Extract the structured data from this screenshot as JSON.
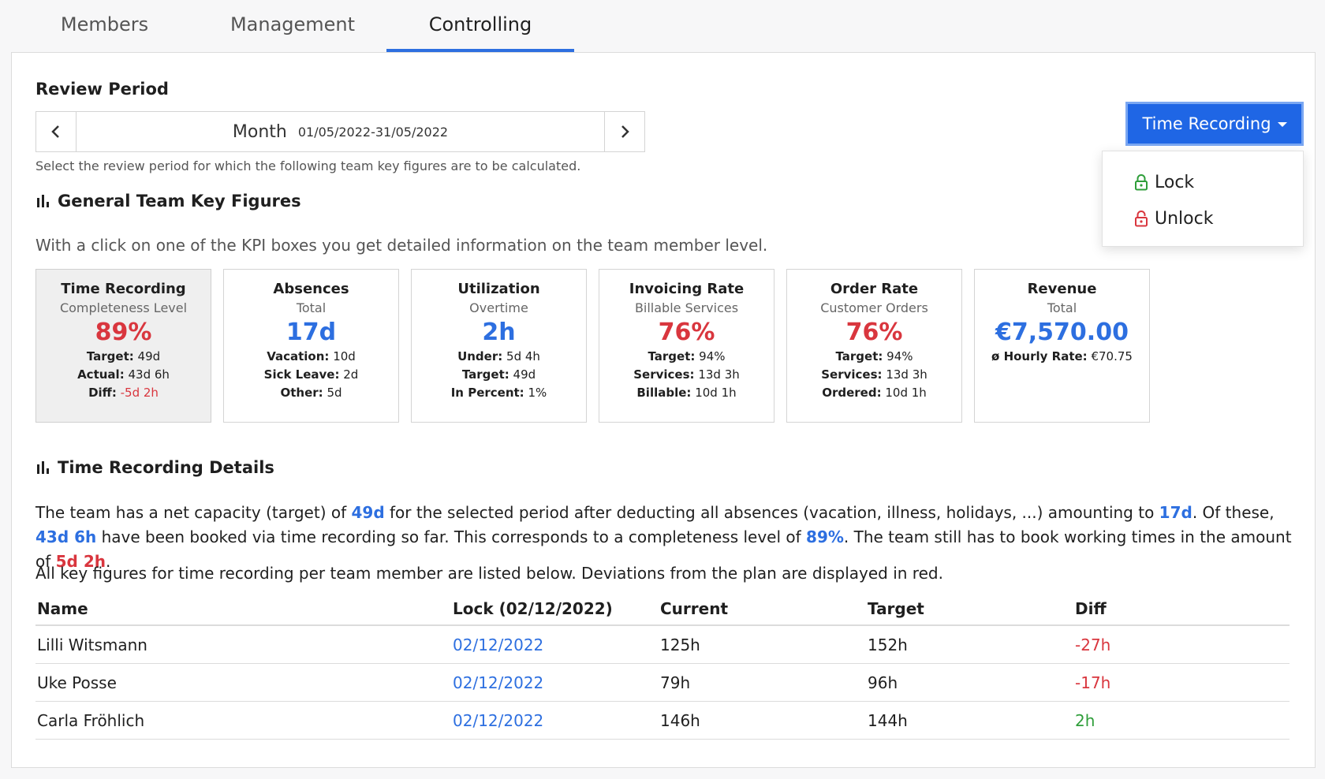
{
  "tabs": [
    {
      "label": "Members",
      "active": false
    },
    {
      "label": "Management",
      "active": false
    },
    {
      "label": "Controlling",
      "active": true
    }
  ],
  "review_period": {
    "title": "Review Period",
    "unit": "Month",
    "range": "01/05/2022-31/05/2022",
    "hint": "Select the review period for which the following team key figures are to be calculated."
  },
  "time_recording_menu": {
    "button_label": "Time Recording",
    "items": [
      {
        "label": "Lock",
        "icon": "lock-icon",
        "color": "#2f9e3a"
      },
      {
        "label": "Unlock",
        "icon": "unlock-icon",
        "color": "#d9363e"
      }
    ]
  },
  "general": {
    "title": "General Team Key Figures",
    "subtitle": "With a click on one of the KPI boxes you get detailed information on the team member level."
  },
  "kpis": [
    {
      "title": "Time Recording",
      "sub": "Completeness Level",
      "value": "89%",
      "color": "red",
      "lines": [
        {
          "k": "Target:",
          "v": "49d"
        },
        {
          "k": "Actual:",
          "v": "43d 6h"
        },
        {
          "k": "Diff:",
          "v": "-5d 2h",
          "red": true
        }
      ]
    },
    {
      "title": "Absences",
      "sub": "Total",
      "value": "17d",
      "color": "blue",
      "lines": [
        {
          "k": "Vacation:",
          "v": "10d"
        },
        {
          "k": "Sick Leave:",
          "v": "2d"
        },
        {
          "k": "Other:",
          "v": "5d"
        }
      ]
    },
    {
      "title": "Utilization",
      "sub": "Overtime",
      "value": "2h",
      "color": "blue",
      "lines": [
        {
          "k": "Under:",
          "v": "5d 4h"
        },
        {
          "k": "Target:",
          "v": "49d"
        },
        {
          "k": "In Percent:",
          "v": "1%"
        }
      ]
    },
    {
      "title": "Invoicing Rate",
      "sub": "Billable Services",
      "value": "76%",
      "color": "red",
      "lines": [
        {
          "k": "Target:",
          "v": "94%"
        },
        {
          "k": "Services:",
          "v": "13d 3h"
        },
        {
          "k": "Billable:",
          "v": "10d 1h"
        }
      ]
    },
    {
      "title": "Order Rate",
      "sub": "Customer Orders",
      "value": "76%",
      "color": "red",
      "lines": [
        {
          "k": "Target:",
          "v": "94%"
        },
        {
          "k": "Services:",
          "v": "13d 3h"
        },
        {
          "k": "Ordered:",
          "v": "10d 1h"
        }
      ]
    },
    {
      "title": "Revenue",
      "sub": "Total",
      "value": "€7,570.00",
      "color": "blue",
      "lines": [
        {
          "k": "ø Hourly Rate:",
          "v": "€70.75"
        }
      ]
    }
  ],
  "details": {
    "title": "Time Recording Details",
    "p1": {
      "t1": "The team has a net capacity (target) of ",
      "v1": "49d",
      "t2": " for the selected period after deducting all absences (vacation, illness, holidays, ...) amounting to ",
      "v2": "17d",
      "t3": ". Of these, ",
      "v3": "43d 6h",
      "t4": " have been booked via time recording so far. This corresponds to a completeness level of ",
      "v4": "89%",
      "t5": ". The team still has to book working times in the amount of ",
      "v5": "5d 2h",
      "t6": "."
    },
    "p2": "All key figures for time recording per team member are listed below. Deviations from the plan are displayed in red."
  },
  "table": {
    "headers": [
      "Name",
      "Lock (02/12/2022)",
      "Current",
      "Target",
      "Diff"
    ],
    "rows": [
      {
        "name": "Lilli Witsmann",
        "lock": "02/12/2022",
        "current": "125h",
        "target": "152h",
        "diff": "-27h",
        "diff_color": "red"
      },
      {
        "name": "Uke Posse",
        "lock": "02/12/2022",
        "current": "79h",
        "target": "96h",
        "diff": "-17h",
        "diff_color": "red"
      },
      {
        "name": "Carla Fröhlich",
        "lock": "02/12/2022",
        "current": "146h",
        "target": "144h",
        "diff": "2h",
        "diff_color": "green"
      }
    ]
  }
}
